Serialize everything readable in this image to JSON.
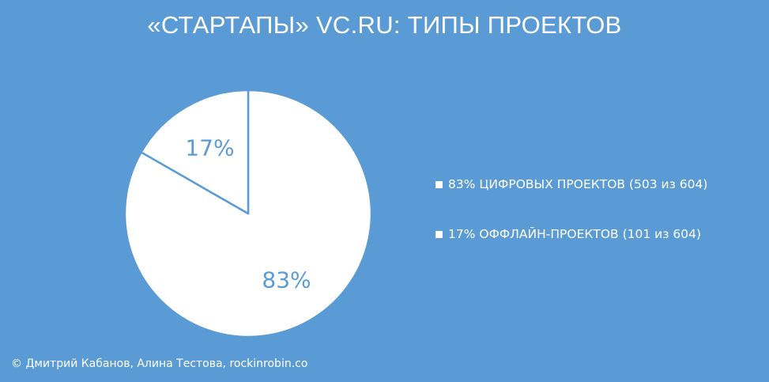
{
  "title": "«СТАРТАПЫ» VC.RU: ТИПЫ ПРОЕКТОВ",
  "credit": "© Дмитрий Кабанов, Алина Тестова, rockinrobin.co",
  "colors": {
    "background": "#5b9bd5",
    "slice": "#ffffff",
    "outline": "#5b9bd5"
  },
  "chart_data": {
    "type": "pie",
    "title": "«СТАРТАПЫ» VC.RU: ТИПЫ ПРОЕКТОВ",
    "slices": [
      {
        "label": "83%",
        "legend": "83% ЦИФРОВЫХ ПРОЕКТОВ (503 из 604)",
        "value": 503,
        "percent": 83
      },
      {
        "label": "17%",
        "legend": "17% ОФФЛАЙН-ПРОЕКТОВ (101 из 604)",
        "value": 101,
        "percent": 17
      }
    ],
    "legend_position": "right"
  }
}
